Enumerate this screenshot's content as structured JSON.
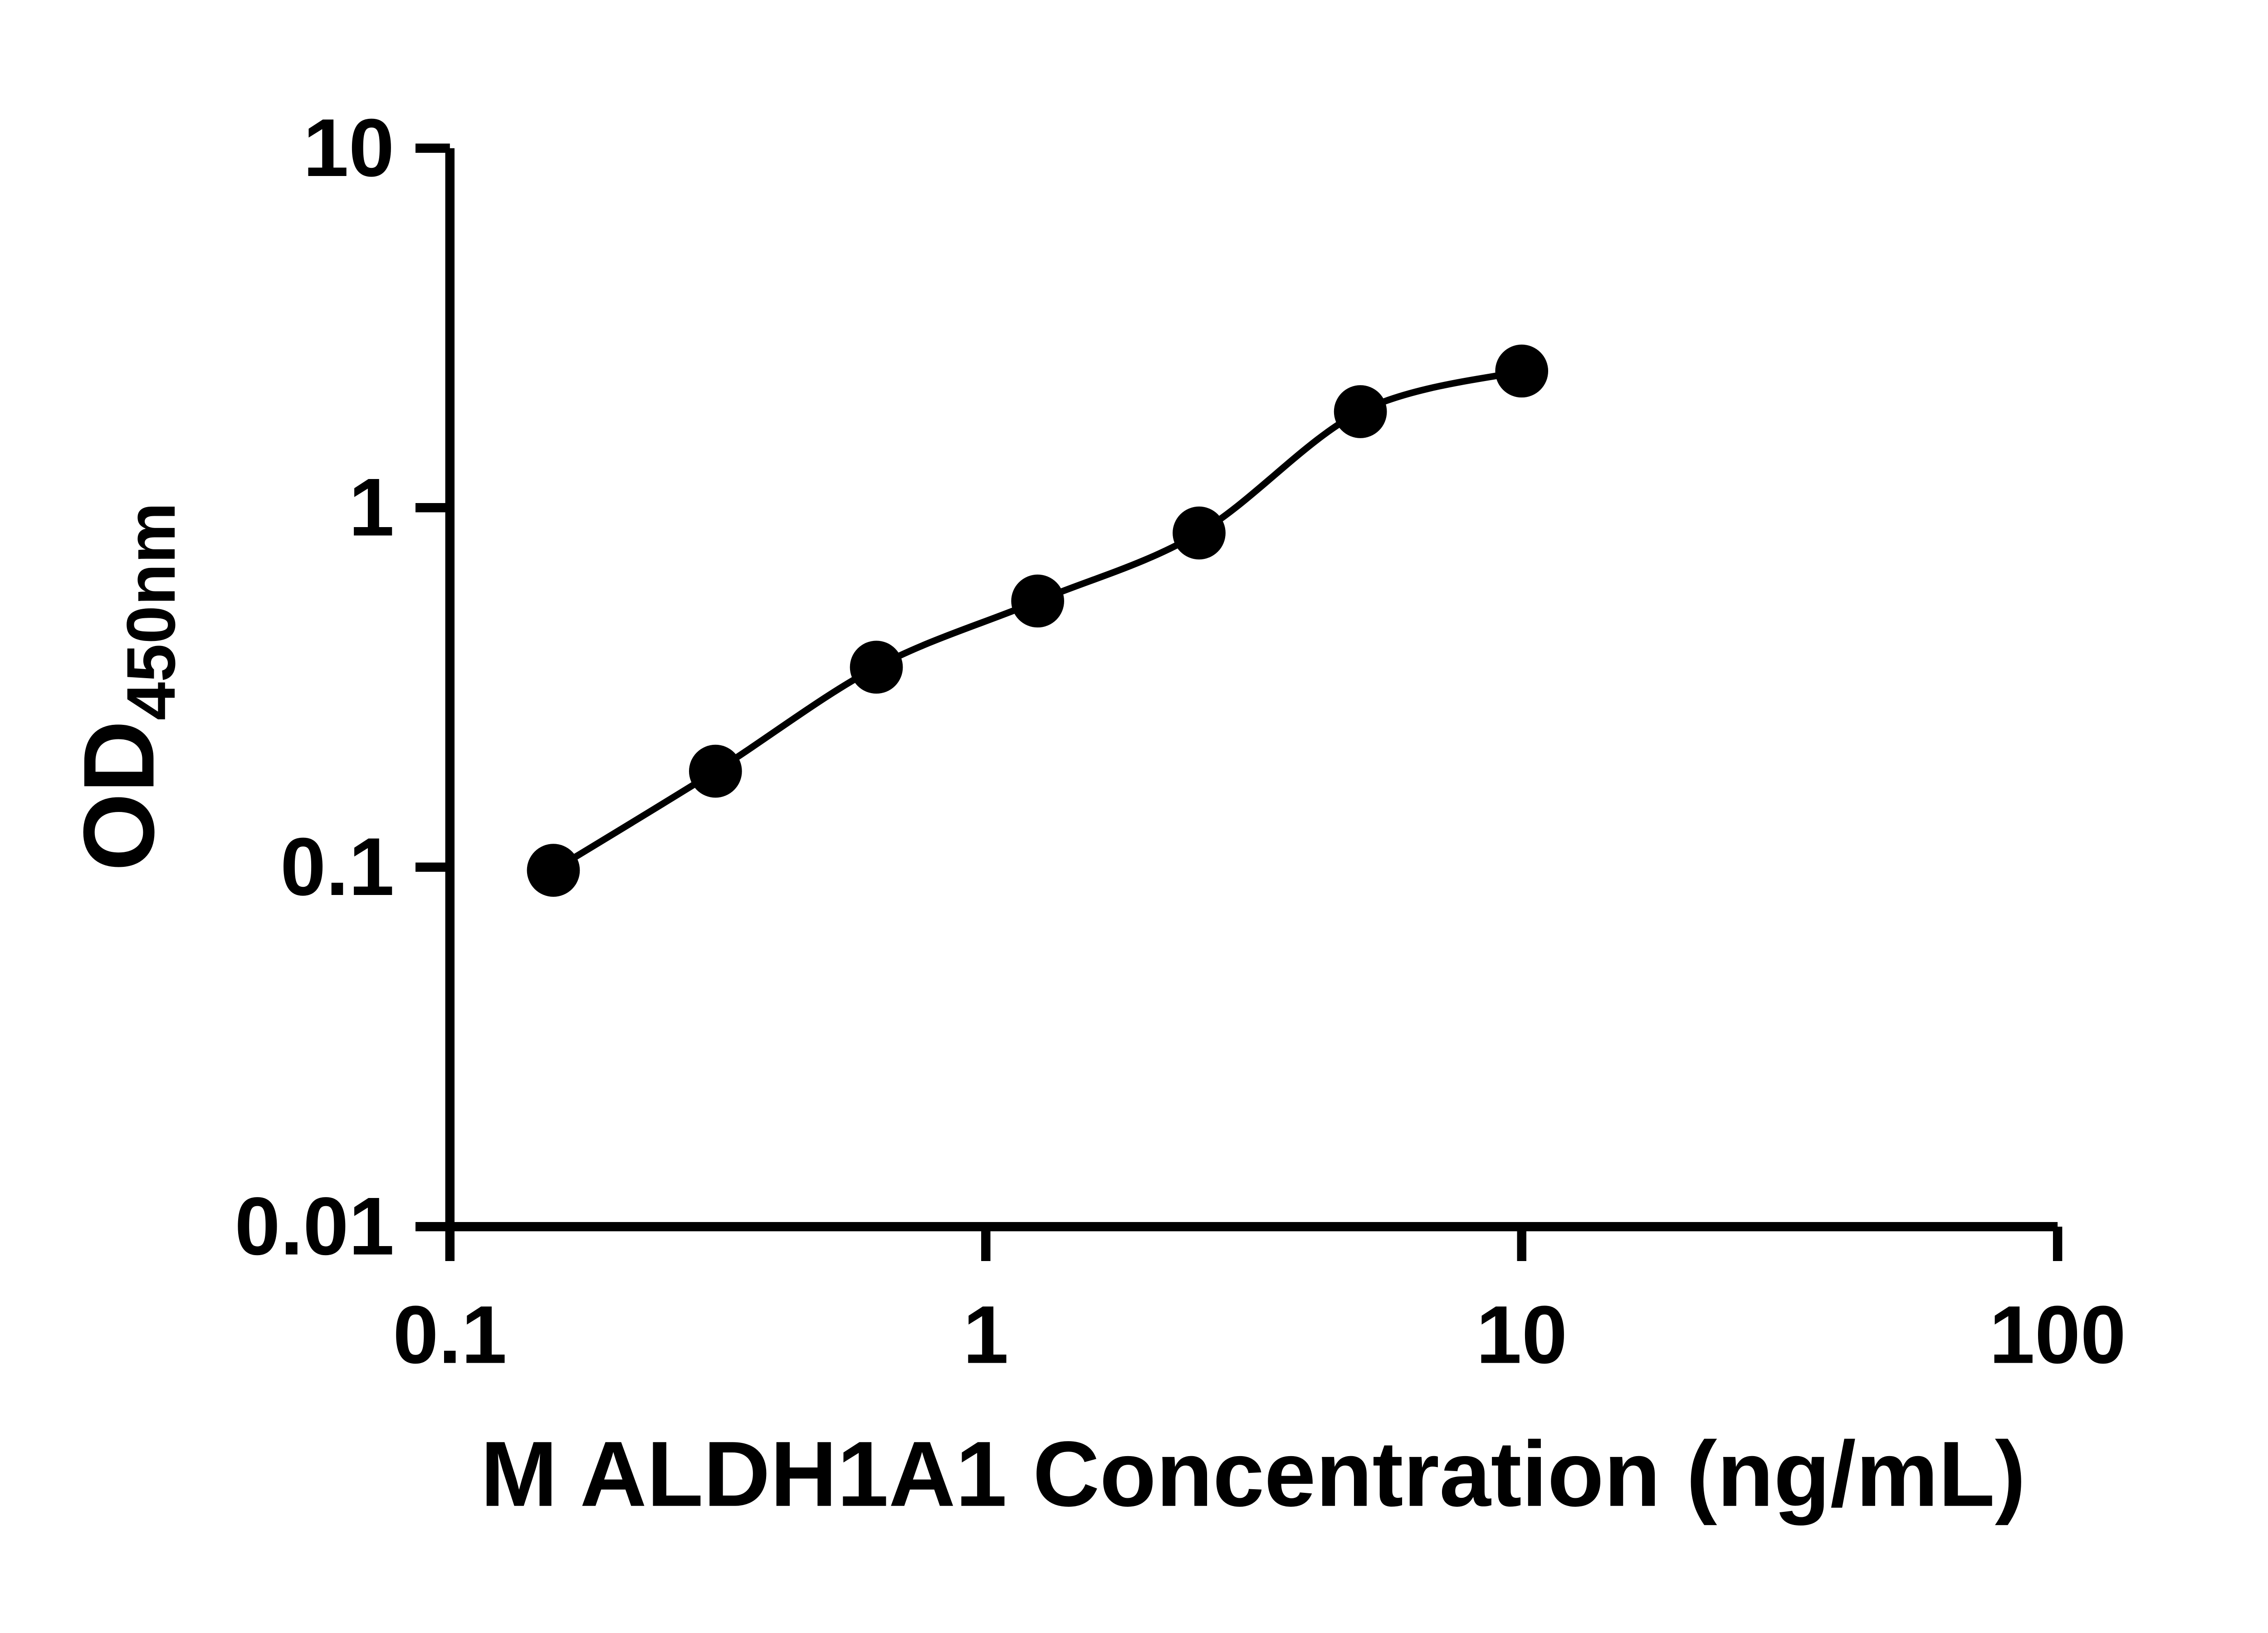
{
  "page": {
    "background": "#ffffff"
  },
  "chart_data": {
    "type": "scatter",
    "title": "",
    "xlabel": "M ALDH1A1 Concentration (ng/mL)",
    "ylabel_main": "OD",
    "ylabel_sub": "450nm",
    "x_scale": "log",
    "y_scale": "log",
    "xlim": [
      0.1,
      100
    ],
    "ylim": [
      0.01,
      10
    ],
    "x_ticks": [
      0.1,
      1,
      10,
      100
    ],
    "x_tick_labels": [
      "0.1",
      "1",
      "10",
      "100"
    ],
    "y_ticks": [
      0.01,
      0.1,
      1,
      10
    ],
    "y_tick_labels": [
      "0.01",
      "0.1",
      "1",
      "10"
    ],
    "grid": false,
    "legend": "none",
    "color": "#000000",
    "series": [
      {
        "marker": "circle",
        "color": "#000000",
        "trendline": "smooth-fit",
        "x": [
          0.156,
          0.313,
          0.625,
          1.25,
          2.5,
          5,
          10
        ],
        "y": [
          0.098,
          0.185,
          0.36,
          0.55,
          0.85,
          1.85,
          2.4
        ]
      }
    ]
  }
}
